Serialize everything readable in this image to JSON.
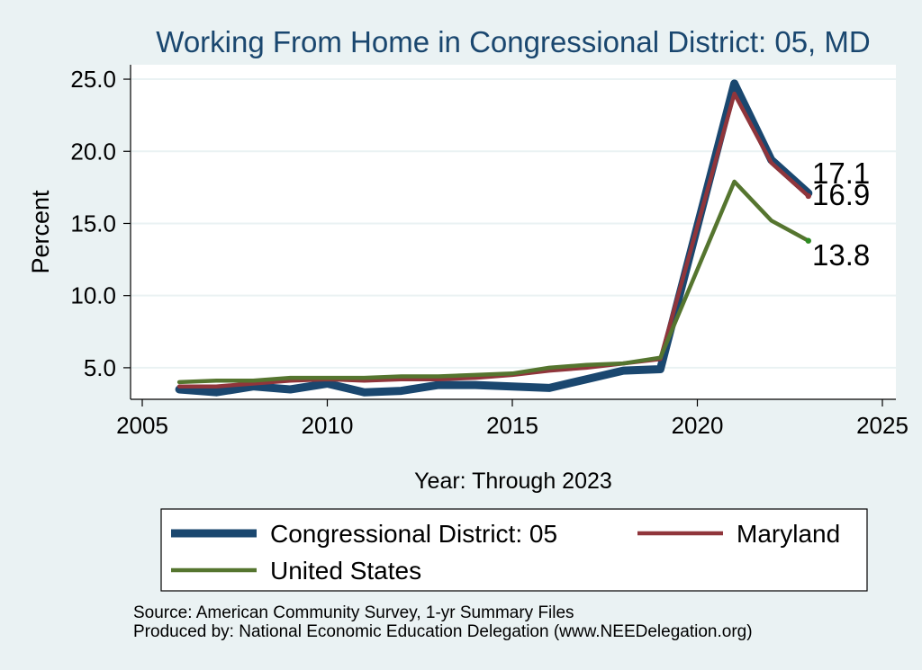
{
  "chart_data": {
    "type": "line",
    "title": "Working From Home in Congressional District: 05, MD",
    "xlabel": "Year: Through 2023",
    "ylabel": "Percent",
    "xlim": [
      2005,
      2025
    ],
    "ylim": [
      2.5,
      26
    ],
    "x_ticks": [
      2005,
      2010,
      2015,
      2020,
      2025
    ],
    "x_tick_labels": [
      "2005",
      "2010",
      "2015",
      "2020",
      "2025"
    ],
    "y_ticks": [
      5,
      10,
      15,
      20,
      25
    ],
    "y_tick_labels": [
      "5.0",
      "10.0",
      "15.0",
      "20.0",
      "25.0"
    ],
    "grid": true,
    "legend_position": "bottom",
    "x": [
      2006,
      2007,
      2008,
      2009,
      2010,
      2011,
      2012,
      2013,
      2014,
      2015,
      2016,
      2017,
      2018,
      2019,
      2021,
      2022,
      2023
    ],
    "series": [
      {
        "name": "Congressional District: 05",
        "color": "#1a476f",
        "values": [
          3.5,
          3.3,
          3.7,
          3.5,
          3.9,
          3.3,
          3.4,
          3.8,
          3.8,
          3.7,
          3.6,
          4.2,
          4.8,
          4.9,
          24.7,
          19.4,
          17.1
        ],
        "end_label": "17.1"
      },
      {
        "name": "Maryland",
        "color": "#90353b",
        "values": [
          3.7,
          3.7,
          3.9,
          4.1,
          4.2,
          4.1,
          4.2,
          4.2,
          4.3,
          4.5,
          4.8,
          5.0,
          5.3,
          5.6,
          24.0,
          19.2,
          16.9
        ],
        "end_label": "16.9"
      },
      {
        "name": "United States",
        "color": "#55752f",
        "values": [
          4.0,
          4.1,
          4.1,
          4.3,
          4.3,
          4.3,
          4.4,
          4.4,
          4.5,
          4.6,
          5.0,
          5.2,
          5.3,
          5.7,
          17.9,
          15.2,
          13.8
        ],
        "end_label": "13.8"
      }
    ]
  },
  "footer": {
    "source": "Source: American Community Survey, 1-yr Summary Files",
    "produced_by": "Produced by: National Economic Education Delegation (www.NEEDelegation.org)"
  }
}
